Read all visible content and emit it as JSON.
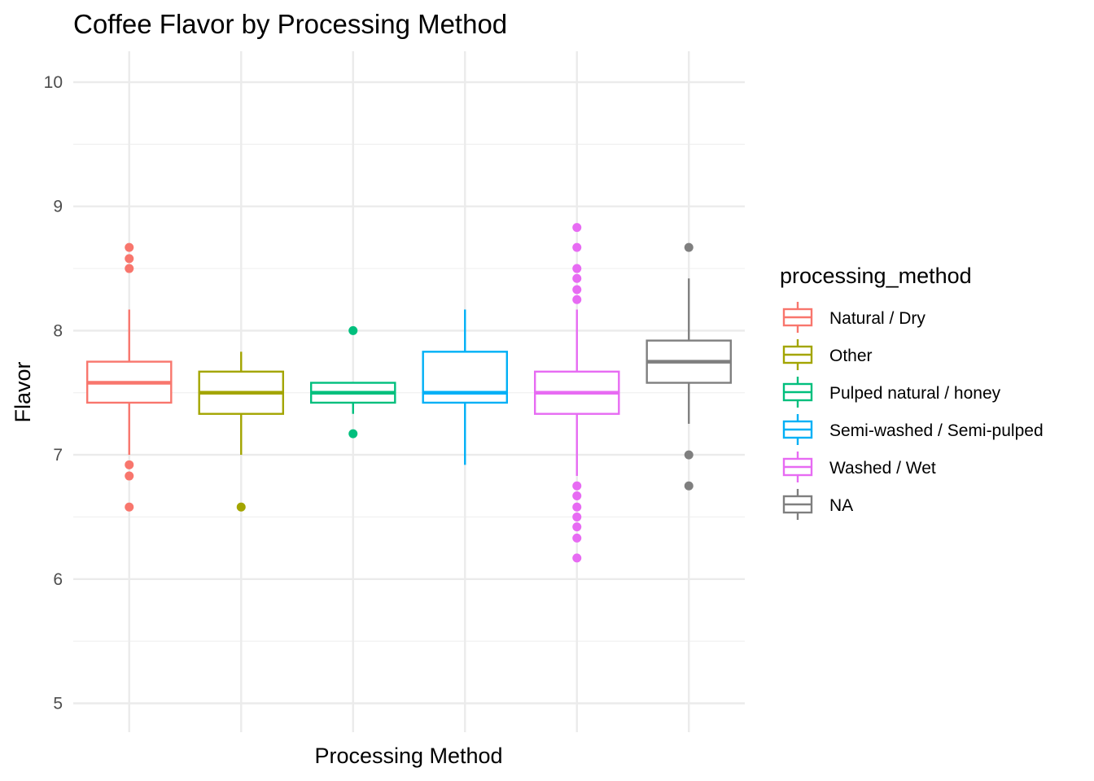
{
  "chart_data": {
    "type": "boxplot",
    "title": "Coffee Flavor by Processing Method",
    "xlabel": "Processing Method",
    "ylabel": "Flavor",
    "ylim": [
      4.9,
      10.25
    ],
    "yticks": [
      5,
      6,
      7,
      8,
      9,
      10
    ],
    "grid": true,
    "x_tick_labels_shown": false,
    "legend": {
      "title": "processing_method",
      "position": "right"
    },
    "series": [
      {
        "name": "Natural / Dry",
        "color": "#F8766D",
        "whisker_low": 7.0,
        "q1": 7.42,
        "median": 7.58,
        "q3": 7.75,
        "whisker_high": 8.17,
        "outliers": [
          8.67,
          8.58,
          8.5,
          6.92,
          6.83,
          6.58
        ]
      },
      {
        "name": "Other",
        "color": "#A3A500",
        "whisker_low": 7.0,
        "q1": 7.33,
        "median": 7.5,
        "q3": 7.67,
        "whisker_high": 7.83,
        "outliers": [
          6.58
        ]
      },
      {
        "name": "Pulped natural / honey",
        "color": "#00BF7D",
        "whisker_low": 7.33,
        "q1": 7.42,
        "median": 7.5,
        "q3": 7.58,
        "whisker_high": 7.58,
        "outliers": [
          8.0,
          7.17
        ]
      },
      {
        "name": "Semi-washed / Semi-pulped",
        "color": "#00B0F6",
        "whisker_low": 6.92,
        "q1": 7.42,
        "median": 7.5,
        "q3": 7.83,
        "whisker_high": 8.17,
        "outliers": []
      },
      {
        "name": "Washed / Wet",
        "color": "#E76BF3",
        "whisker_low": 6.83,
        "q1": 7.33,
        "median": 7.5,
        "q3": 7.67,
        "whisker_high": 8.17,
        "outliers": [
          8.83,
          8.67,
          8.5,
          8.42,
          8.33,
          8.25,
          6.75,
          6.67,
          6.58,
          6.5,
          6.42,
          6.33,
          6.17
        ]
      },
      {
        "name": "NA",
        "color": "#7F7F7F",
        "whisker_low": 7.25,
        "q1": 7.58,
        "median": 7.75,
        "q3": 7.92,
        "whisker_high": 8.42,
        "outliers": [
          8.67,
          7.0,
          6.75
        ]
      }
    ]
  }
}
